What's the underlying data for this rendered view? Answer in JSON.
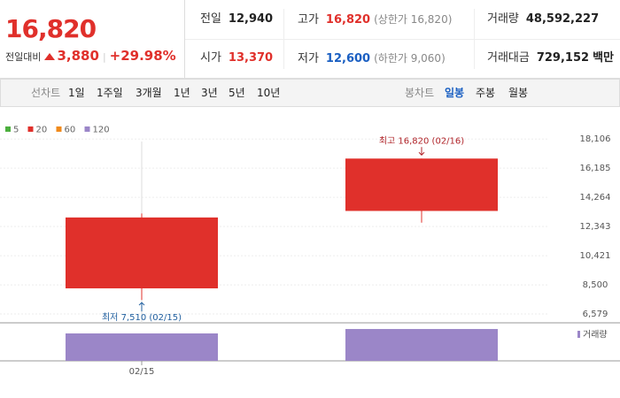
{
  "header": {
    "price": "16,820",
    "change_label": "전일대비",
    "change": "3,880",
    "change_rate": "+29.98%",
    "stats": [
      {
        "label": "전일",
        "value": "12,940",
        "color": "#222"
      },
      {
        "label": "고가",
        "value": "16,820",
        "note": "(상한가 16,820)",
        "color": "#e0302b"
      },
      {
        "label": "거래량",
        "value": "48,592,227",
        "color": "#222"
      },
      {
        "label": "시가",
        "value": "13,370",
        "color": "#e0302b"
      },
      {
        "label": "저가",
        "value": "12,600",
        "note": "(하한가 9,060)",
        "color": "#1a5fc2"
      },
      {
        "label": "거래대금",
        "value": "729,152",
        "unit": "백만",
        "color": "#222"
      }
    ]
  },
  "toolbar": {
    "line_chart": {
      "label": "선차트",
      "options": [
        "1일",
        "1주일",
        "3개월",
        "1년",
        "3년",
        "5년",
        "10년"
      ]
    },
    "candle_chart": {
      "label": "봉차트",
      "options": [
        "일봉",
        "주봉",
        "월봉"
      ],
      "selected": 0
    }
  },
  "chart_data": {
    "type": "candlestick",
    "categories": [
      "02/15",
      null
    ],
    "open": [
      8270,
      13370
    ],
    "high": [
      13200,
      16820
    ],
    "low": [
      7510,
      12600
    ],
    "close": [
      12940,
      16820
    ],
    "color": "#e0302b",
    "ylim": [
      6000,
      19400
    ],
    "yticks": [
      {
        "value": 18106,
        "label": "18,106"
      },
      {
        "value": 16185,
        "label": "16,185"
      },
      {
        "value": 14264,
        "label": "14,264"
      },
      {
        "value": 12343,
        "label": "12,343"
      },
      {
        "value": 10421,
        "label": "10,421"
      },
      {
        "value": 8500,
        "label": "8,500"
      },
      {
        "value": 6579,
        "label": "6,579"
      }
    ],
    "grid": true,
    "ma_legend": [
      {
        "name": "5",
        "color": "#4caf3e"
      },
      {
        "name": "20",
        "color": "#e0302b"
      },
      {
        "name": "60",
        "color": "#f08a1c"
      },
      {
        "name": "120",
        "color": "#9b86c8"
      }
    ],
    "annotations": [
      {
        "text": "최고 16,820 (02/16)",
        "value": 16820,
        "kind": "high",
        "color": "#b0252a"
      },
      {
        "text": "최저 7,510 (02/15)",
        "value": 7510,
        "kind": "low",
        "color": "#1f5e9e"
      }
    ],
    "volume": {
      "name": "거래량",
      "color": "#9b86c8",
      "values": [
        41840000,
        48592227
      ],
      "ylim": [
        0,
        58000000
      ]
    }
  }
}
